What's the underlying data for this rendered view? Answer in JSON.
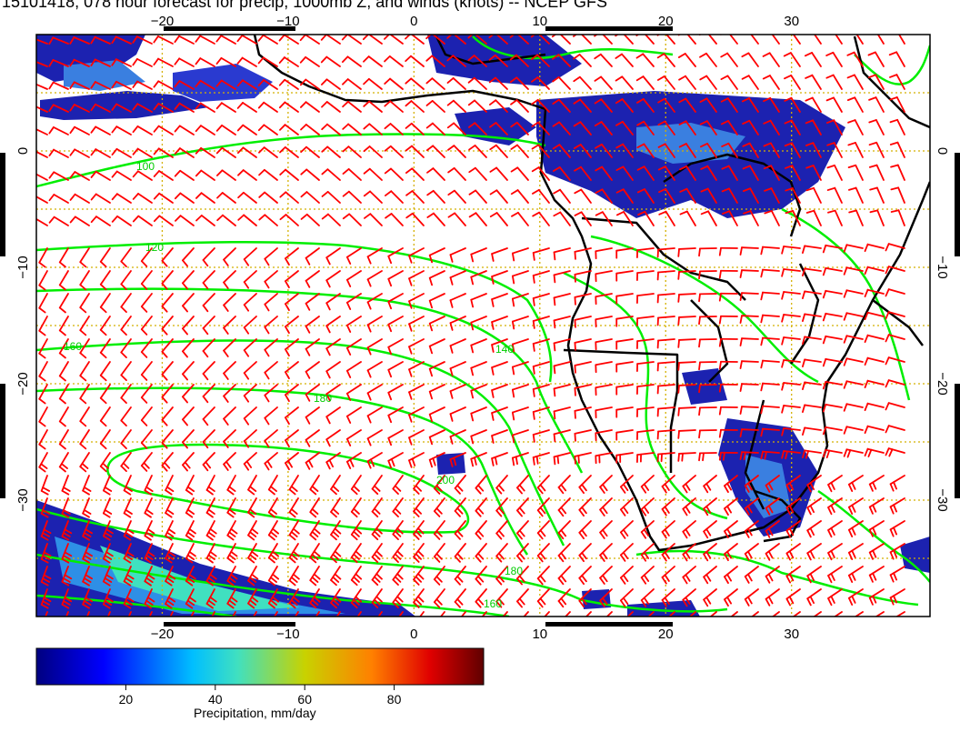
{
  "title": "15101418, 078 hour forecast for precip, 1000mb Z, and winds (knots) -- NCEP GFS",
  "map": {
    "lon_range": [
      -30,
      41
    ],
    "lat_range": [
      -40,
      10
    ],
    "lon_ticks": [
      -20,
      -10,
      0,
      10,
      20,
      30
    ],
    "lat_ticks": [
      0,
      -10,
      -20,
      -30
    ],
    "lon_tick_labels": [
      "−20",
      "−10",
      "0",
      "10",
      "20",
      "30"
    ],
    "lat_tick_labels": [
      "0",
      "−10",
      "−20",
      "−30"
    ],
    "grid": "dotted",
    "colors": {
      "grid": "#d4b000",
      "wind_barbs": "#ff0000",
      "contours": "#00ee00",
      "coastline": "#000000",
      "precip_low": "#1a1aa0",
      "precip_high": "#00c8ff"
    },
    "contour_labels": [
      "100",
      "120",
      "140",
      "160",
      "180",
      "200"
    ],
    "precip_areas": [
      "tropical West Africa",
      "Congo basin",
      "Southern Ocean",
      "southeast South Africa"
    ],
    "wind_barbs_shown": true
  },
  "colorbar": {
    "label": "Precipitation, mm/day",
    "range": [
      0,
      100
    ],
    "ticks": [
      20,
      40,
      60,
      80
    ],
    "tick_labels": [
      "20",
      "40",
      "60",
      "80"
    ],
    "colormap": [
      "#000080",
      "#0000ff",
      "#00bfff",
      "#40e0c0",
      "#c8d200",
      "#ff8000",
      "#e00000",
      "#600000"
    ]
  }
}
